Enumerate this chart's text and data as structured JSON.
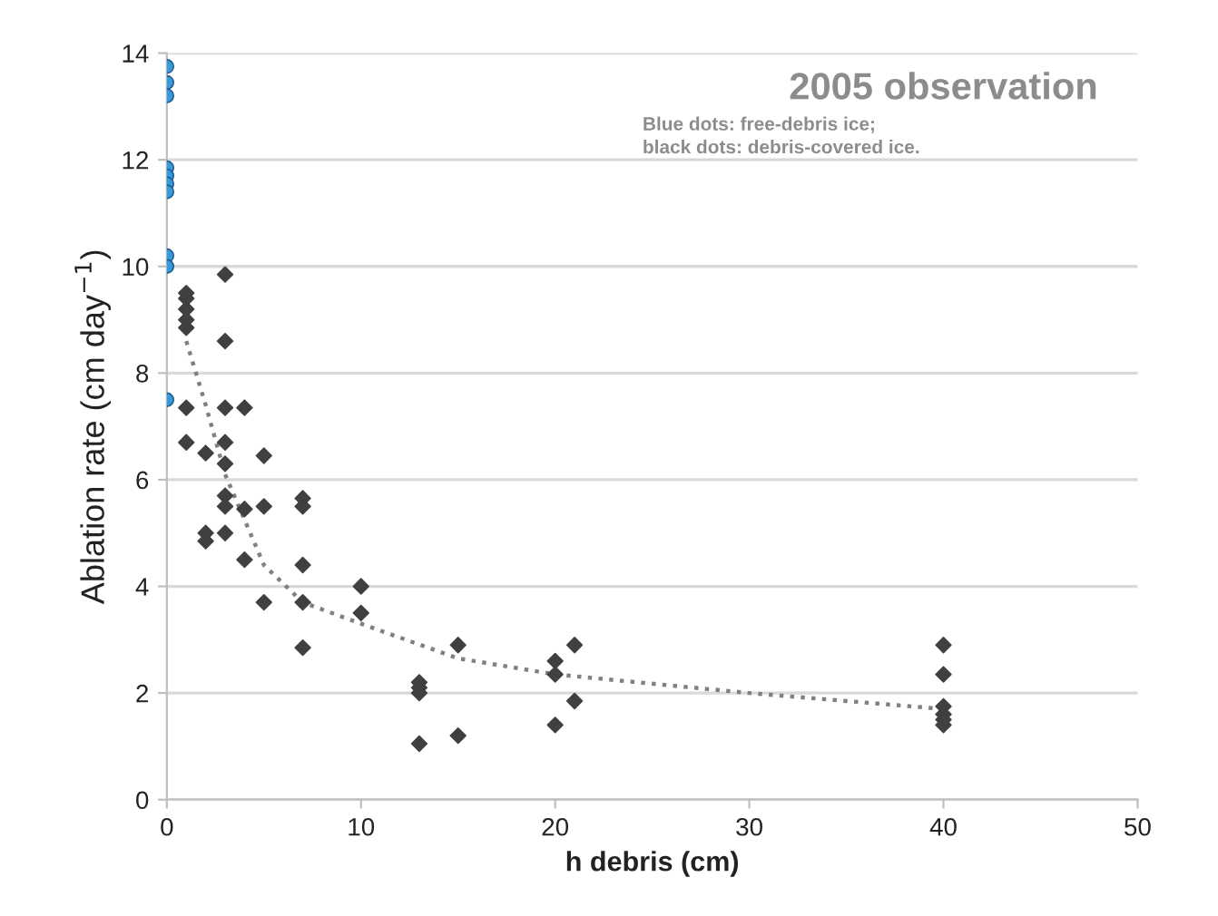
{
  "chart_data": {
    "type": "scatter",
    "title": "2005 observation",
    "subtitle": "Blue dots: free-debris ice;\nblack dots: debris-covered ice.",
    "xlabel": "h debris (cm)",
    "ylabel": "Ablation rate (cm day$^{−1}$)",
    "xlim": [
      0,
      50
    ],
    "xticks": [
      0,
      10,
      20,
      30,
      40,
      50
    ],
    "ylim": [
      0,
      14
    ],
    "yticks": [
      0,
      2,
      4,
      6,
      8,
      10,
      12,
      14
    ],
    "grid": "y",
    "legend": false,
    "series": [
      {
        "marker": "circle",
        "color": "#3a9ad9",
        "x": [
          0,
          0,
          0,
          0,
          0,
          0,
          0,
          0,
          0,
          0
        ],
        "values": [
          13.75,
          13.45,
          13.2,
          11.85,
          11.7,
          11.55,
          11.4,
          10.2,
          10.0,
          7.5
        ]
      },
      {
        "marker": "diamond",
        "color": "#404040",
        "x": [
          1,
          1,
          1,
          1,
          1,
          1,
          1,
          2,
          2,
          2,
          3,
          3,
          3,
          3,
          3,
          3,
          3,
          3,
          4,
          4,
          4,
          5,
          5,
          5,
          7,
          7,
          7,
          7,
          7,
          10,
          10,
          13,
          13,
          13,
          13,
          15,
          15,
          20,
          20,
          20,
          21,
          21,
          40,
          40,
          40,
          40,
          40,
          40
        ],
        "values": [
          9.5,
          9.4,
          9.2,
          9.0,
          8.85,
          7.35,
          6.7,
          6.5,
          5.0,
          4.85,
          9.85,
          8.6,
          7.35,
          6.7,
          6.3,
          5.7,
          5.5,
          5.0,
          7.35,
          5.45,
          4.5,
          6.45,
          5.5,
          3.7,
          5.65,
          5.5,
          4.4,
          3.7,
          2.85,
          4.0,
          3.5,
          2.2,
          2.1,
          2.0,
          1.05,
          2.9,
          1.2,
          2.6,
          2.35,
          1.4,
          2.9,
          1.85,
          2.9,
          2.35,
          1.75,
          1.6,
          1.5,
          1.4
        ]
      },
      {
        "type": "line",
        "line_style": "dotted",
        "marker": "none",
        "color": "#808080",
        "x": [
          1,
          2,
          3,
          5,
          7,
          10,
          15,
          20,
          30,
          40
        ],
        "values": [
          8.6,
          7.4,
          6.1,
          4.4,
          3.7,
          3.3,
          2.65,
          2.35,
          2.0,
          1.7
        ]
      }
    ]
  }
}
